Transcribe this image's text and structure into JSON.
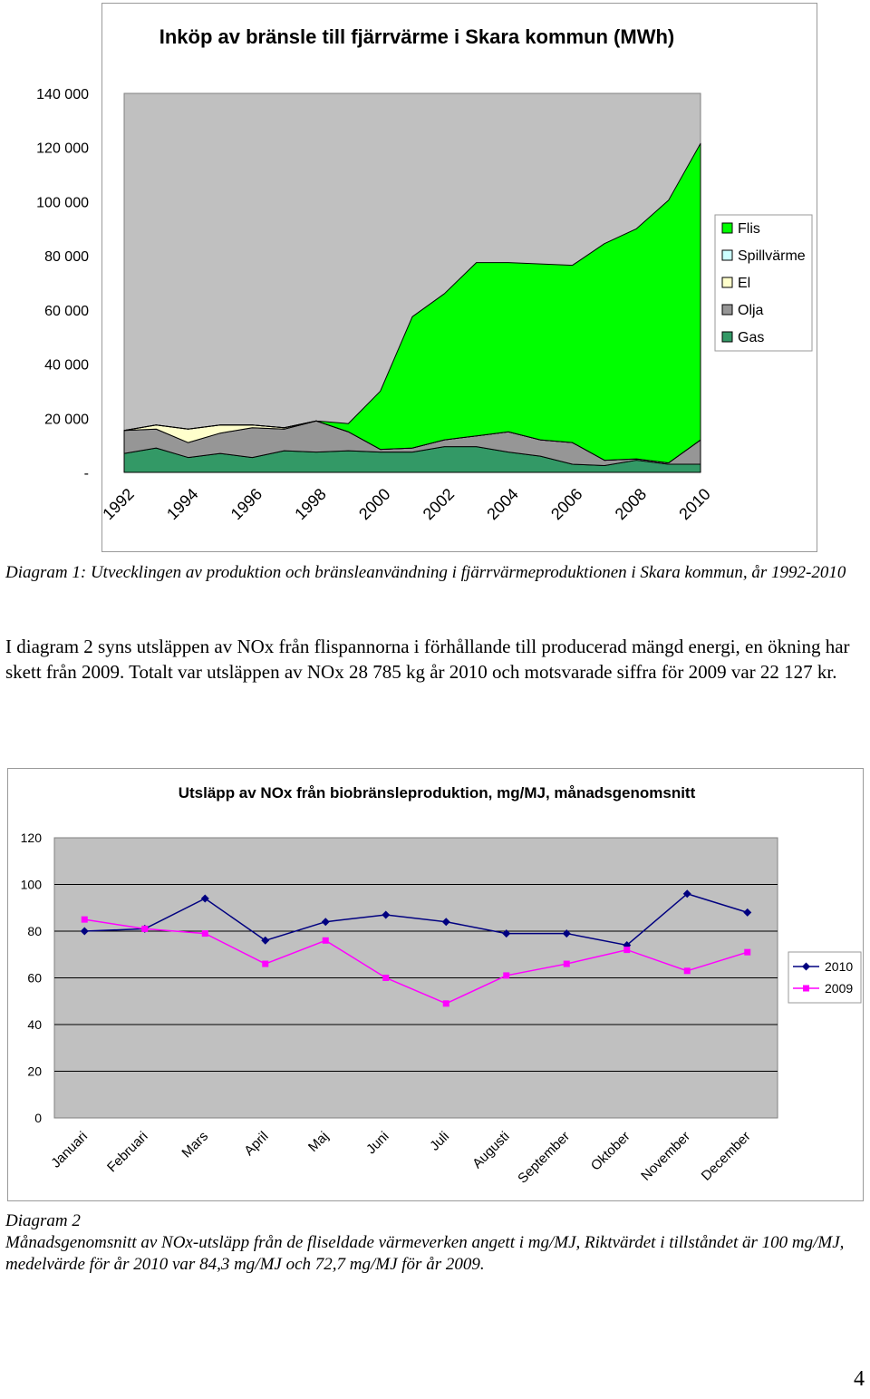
{
  "chart_data": [
    {
      "type": "area",
      "stacked": true,
      "title": "Inköp av bränsle till fjärrvärme i Skara kommun (MWh)",
      "x": [
        1992,
        1993,
        1994,
        1995,
        1996,
        1997,
        1998,
        1999,
        2000,
        2001,
        2002,
        2003,
        2004,
        2005,
        2006,
        2007,
        2008,
        2009,
        2010
      ],
      "x_tick_labels": [
        "1992",
        "1994",
        "1996",
        "1998",
        "2000",
        "2002",
        "2004",
        "2006",
        "2008",
        "2010"
      ],
      "y_tick_labels": [
        "-",
        "20 000",
        "40 000",
        "60 000",
        "80 000",
        "100 000",
        "120 000",
        "140 000"
      ],
      "ylim": [
        0,
        140000
      ],
      "grid": false,
      "legend_position": "right",
      "series": [
        {
          "name": "Gas",
          "color": "#339966",
          "values": [
            7000,
            9000,
            5500,
            7000,
            5500,
            8000,
            7500,
            8000,
            7500,
            7500,
            9500,
            9500,
            7500,
            6000,
            3000,
            2500,
            4500,
            3000,
            3000
          ]
        },
        {
          "name": "Olja",
          "color": "#969696",
          "values": [
            8500,
            7000,
            5500,
            7500,
            11000,
            8000,
            11500,
            7000,
            1000,
            1500,
            2500,
            4000,
            7500,
            6000,
            8000,
            2000,
            500,
            500,
            9000
          ]
        },
        {
          "name": "El",
          "color": "#ffffcc",
          "values": [
            0,
            1500,
            5000,
            3000,
            1000,
            500,
            0,
            0,
            0,
            0,
            0,
            0,
            0,
            0,
            0,
            0,
            0,
            0,
            0
          ]
        },
        {
          "name": "Spillvärme",
          "color": "#ccffff",
          "values": [
            0,
            0,
            0,
            0,
            0,
            0,
            0,
            0,
            0,
            0,
            0,
            0,
            0,
            0,
            0,
            0,
            0,
            0,
            0
          ]
        },
        {
          "name": "Flis",
          "color": "#00ff00",
          "values": [
            0,
            0,
            0,
            0,
            0,
            0,
            0,
            3000,
            21500,
            48500,
            54000,
            64000,
            62500,
            65000,
            65500,
            80000,
            85000,
            97000,
            109500
          ]
        }
      ]
    },
    {
      "type": "line",
      "title": "Utsläpp av NOx från biobränsleproduktion, mg/MJ, månadsgenomsnitt",
      "categories": [
        "Januari",
        "Februari",
        "Mars",
        "April",
        "Maj",
        "Juni",
        "Juli",
        "Augusti",
        "September",
        "Oktober",
        "November",
        "December"
      ],
      "y_tick_labels": [
        "0",
        "20",
        "40",
        "60",
        "80",
        "100",
        "120"
      ],
      "ylim": [
        0,
        120
      ],
      "grid": true,
      "legend_position": "right",
      "series": [
        {
          "name": "2010",
          "color": "#000080",
          "marker": "diamond",
          "values": [
            80,
            81,
            94,
            76,
            84,
            87,
            84,
            79,
            79,
            74,
            96,
            88
          ]
        },
        {
          "name": "2009",
          "color": "#ff00ff",
          "marker": "square",
          "values": [
            85,
            81,
            79,
            66,
            76,
            60,
            49,
            61,
            66,
            72,
            63,
            71
          ]
        }
      ]
    }
  ],
  "text": {
    "caption1": "Diagram 1: Utvecklingen av produktion och bränsleanvändning i fjärrvärmeproduktionen i Skara kommun, år 1992-2010",
    "body1": "I diagram 2 syns utsläppen av NOx från flispannorna i förhållande till producerad mängd energi, en ökning har skett från 2009. Totalt var utsläppen av NOx 28 785 kg år 2010 och motsvarade siffra för 2009 var 22 127 kr.",
    "caption2_title": "Diagram 2",
    "caption2_body": "Månadsgenomsnitt av NOx-utsläpp från de fliseldade värmeverken angett i mg/MJ, Riktvärdet i tillståndet är 100 mg/MJ, medelvärde för år 2010 var 84,3 mg/MJ och 72,7 mg/MJ för år 2009.",
    "page_number": "4"
  }
}
